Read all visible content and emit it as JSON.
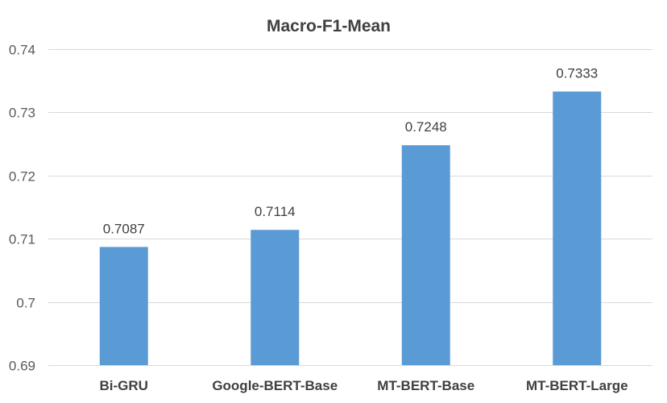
{
  "chart_data": {
    "type": "bar",
    "title": "Macro-F1-Mean",
    "xlabel": "",
    "ylabel": "",
    "categories": [
      "Bi-GRU",
      "Google-BERT-Base",
      "MT-BERT-Base",
      "MT-BERT-Large"
    ],
    "values": [
      0.7087,
      0.7114,
      0.7248,
      0.7333
    ],
    "data_labels": [
      "0.7087",
      "0.7114",
      "0.7248",
      "0.7333"
    ],
    "ylim": [
      0.69,
      0.74
    ],
    "yticks": [
      0.69,
      0.7,
      0.71,
      0.72,
      0.73,
      0.74
    ],
    "ytick_labels": [
      "0.69",
      "0.7",
      "0.71",
      "0.72",
      "0.73",
      "0.74"
    ],
    "grid": true,
    "legend": "none",
    "bar_color": "#5b9bd5",
    "grid_color": "#d9d9d9"
  }
}
